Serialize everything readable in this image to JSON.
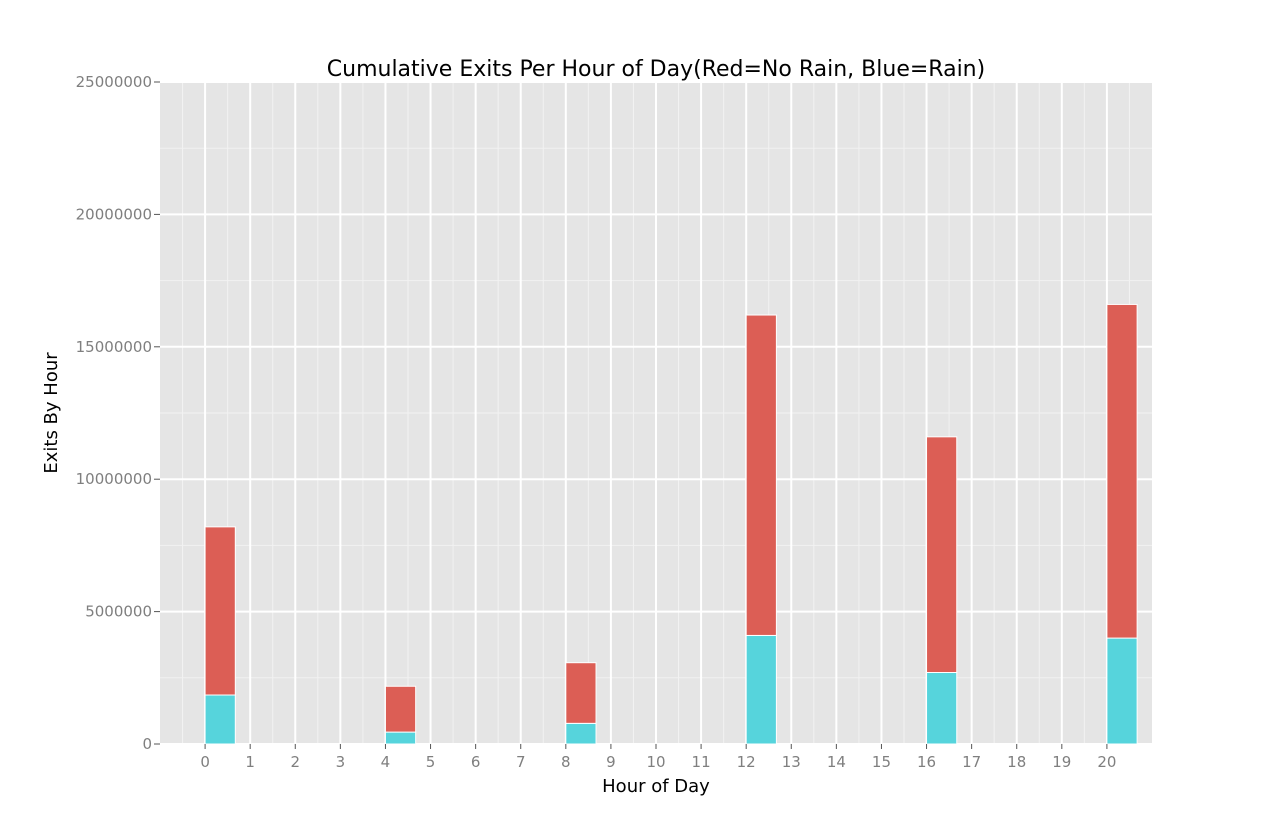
{
  "chart_data": {
    "type": "bar",
    "stacked": true,
    "title": "Cumulative Exits Per Hour of Day(Red=No Rain, Blue=Rain)",
    "xlabel": "Hour of Day",
    "ylabel": "Exits By Hour",
    "x_ticks": [
      "0",
      "1",
      "2",
      "3",
      "4",
      "5",
      "6",
      "7",
      "8",
      "9",
      "10",
      "11",
      "12",
      "13",
      "14",
      "15",
      "16",
      "17",
      "18",
      "19",
      "20"
    ],
    "y_ticks": [
      "0",
      "5000000",
      "10000000",
      "15000000",
      "20000000",
      "25000000"
    ],
    "ylim": [
      0,
      25000000
    ],
    "xlim": [
      -1,
      21
    ],
    "categories": [
      0,
      4,
      8,
      12,
      16,
      20
    ],
    "series": [
      {
        "color": "#56d4dc",
        "values": [
          1850000,
          450000,
          780000,
          4100000,
          2700000,
          4000000
        ]
      },
      {
        "color": "#dc5e55",
        "values": [
          6350000,
          1730000,
          2290000,
          12100000,
          8900000,
          12600000
        ]
      }
    ],
    "grid": true,
    "panel_color": "#e5e5e5"
  }
}
